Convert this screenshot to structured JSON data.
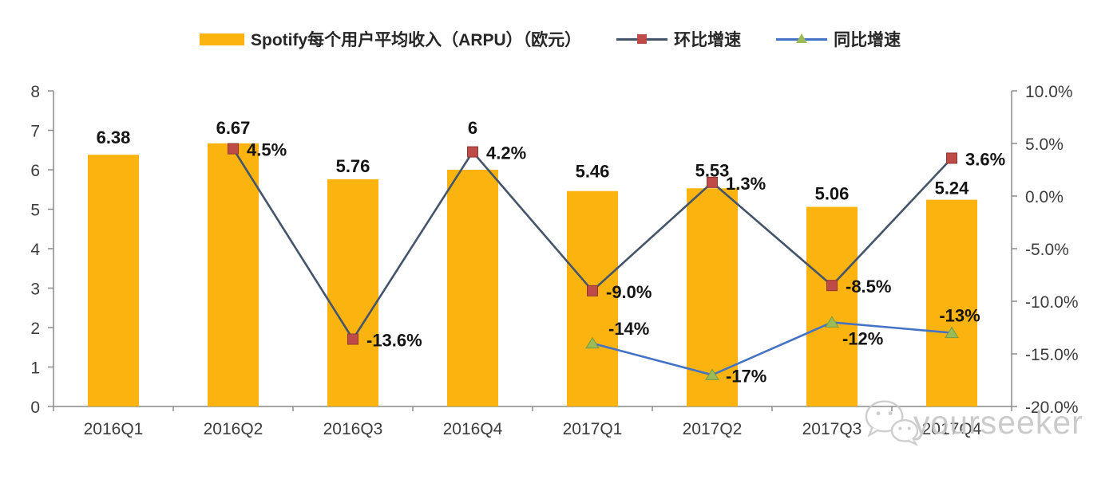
{
  "page": {
    "background": "#ffffff"
  },
  "legend": {
    "position": "top",
    "items": [
      {
        "label": "Spotify每个用户平均收入（ARPU）（欧元）",
        "swatch": "bar",
        "color": "#FBB40F"
      },
      {
        "label": "环比增速",
        "swatch": "line-square",
        "line_color": "#44546A",
        "marker_color": "#BE4B48"
      },
      {
        "label": "同比增速",
        "swatch": "line-triangle",
        "line_color": "#4472C4",
        "marker_color": "#9BBB59"
      }
    ]
  },
  "watermark": {
    "icon": "wechat-icon",
    "text": "yourseeker"
  },
  "chart_data": {
    "type": "combo (bar + line, dual axis)",
    "categories": [
      "2016Q1",
      "2016Q2",
      "2016Q3",
      "2016Q4",
      "2017Q1",
      "2017Q2",
      "2017Q3",
      "2017Q4"
    ],
    "series": [
      {
        "name": "Spotify每个用户平均收入（ARPU）（欧元）",
        "type": "bar",
        "axis": "left",
        "color": "#FBB40F",
        "values": [
          6.38,
          6.67,
          5.76,
          6,
          5.46,
          5.53,
          5.06,
          5.24
        ],
        "labels": [
          "6.38",
          "6.67",
          "5.76",
          "6",
          "5.46",
          "5.53",
          "5.06",
          "5.24"
        ],
        "label_dy": [
          -14,
          -12,
          -9,
          -45,
          -17,
          -15,
          -9,
          -7
        ]
      },
      {
        "name": "环比增速",
        "type": "line",
        "axis": "right",
        "color": "#44546A",
        "marker": "square",
        "marker_color": "#BE4B48",
        "values": [
          null,
          4.5,
          -13.6,
          4.2,
          -9.0,
          1.3,
          -8.5,
          3.6
        ],
        "labels": [
          null,
          "4.5%",
          "-13.6%",
          "4.2%",
          "-9.0%",
          "1.3%",
          "-8.5%",
          "3.6%"
        ],
        "label_pos": [
          null,
          "right",
          "right",
          "right",
          "right",
          "right",
          "right",
          "right"
        ]
      },
      {
        "name": "同比增速",
        "type": "line",
        "axis": "right",
        "color": "#4472C4",
        "marker": "triangle",
        "marker_color": "#9BBB59",
        "values": [
          null,
          null,
          null,
          null,
          -14,
          -17,
          -12,
          -13
        ],
        "labels": [
          null,
          null,
          null,
          null,
          "-14%",
          "-17%",
          "-12%",
          "-13%"
        ],
        "label_pos": [
          null,
          null,
          null,
          null,
          "above-right",
          "right",
          "below-right",
          "above"
        ]
      }
    ],
    "left_axis": {
      "min": 0,
      "max": 8,
      "step": 1,
      "tick_values": [
        0,
        1,
        2,
        3,
        4,
        5,
        6,
        7,
        8
      ],
      "tick_labels": [
        "0",
        "1",
        "2",
        "3",
        "4",
        "5",
        "6",
        "7",
        "8"
      ]
    },
    "right_axis": {
      "min": -20,
      "max": 10,
      "step": 5,
      "tick_values": [
        -20,
        -15,
        -10,
        -5,
        0,
        5,
        10
      ],
      "tick_labels": [
        "-20.0%",
        "-15.0%",
        "-10.0%",
        "-5.0%",
        "0.0%",
        "5.0%",
        "10.0%"
      ]
    },
    "grid": false,
    "legend_position": "top"
  }
}
